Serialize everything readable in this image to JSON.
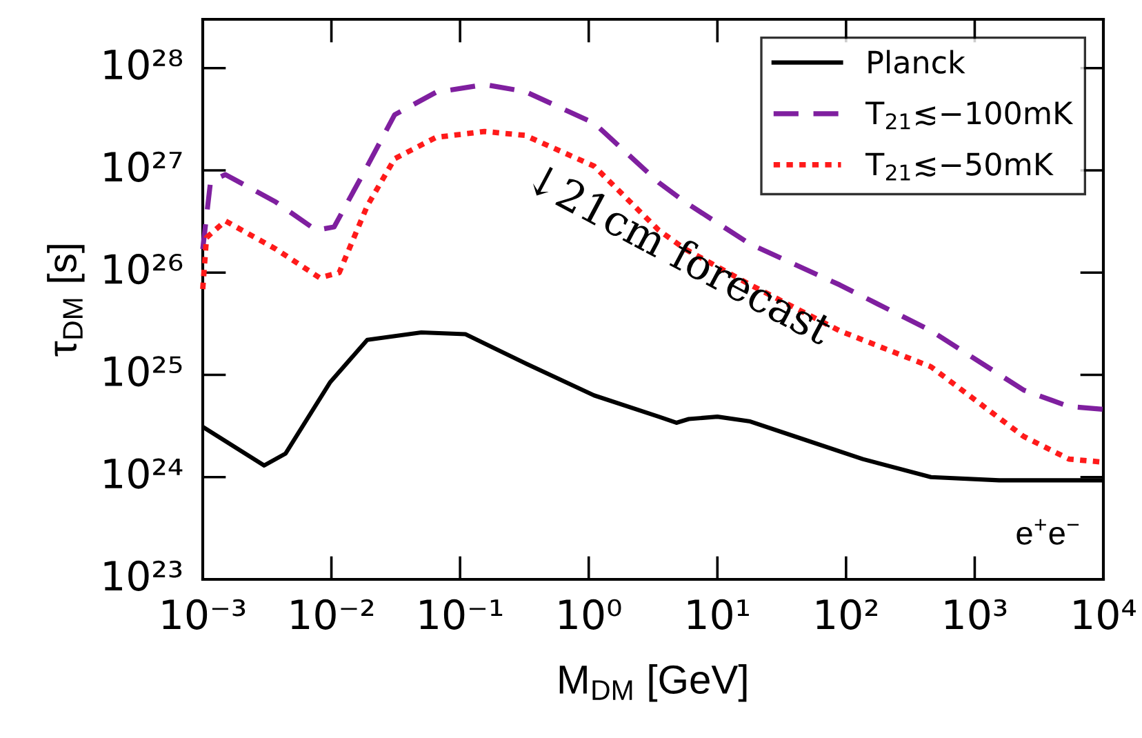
{
  "chart_data": {
    "type": "line",
    "xlabel": "M$_{DM}$ [GeV]",
    "ylabel": "τ$_{DM}$ [s]",
    "log": "xy",
    "grid": false,
    "legend": "top right",
    "xlim": [
      0.001,
      10000
    ],
    "xticks": [
      {
        "value": 0.001,
        "label": "10⁻³"
      },
      {
        "value": 0.01,
        "label": "10⁻²"
      },
      {
        "value": 0.1,
        "label": "10⁻¹"
      },
      {
        "value": 1,
        "label": "10⁰"
      },
      {
        "value": 10,
        "label": "10¹"
      },
      {
        "value": 100,
        "label": "10²"
      },
      {
        "value": 1000,
        "label": "10³"
      },
      {
        "value": 10000,
        "label": "10⁴"
      }
    ],
    "ylim": [
      1e+23,
      3e+28
    ],
    "yticks": [
      {
        "value": 1e+23,
        "label": "10²³"
      },
      {
        "value": 1e+24,
        "label": "10²⁴"
      },
      {
        "value": 1e+25,
        "label": "10²⁵"
      },
      {
        "value": 1e+26,
        "label": "10²⁶"
      },
      {
        "value": 1e+27,
        "label": "10²⁷"
      },
      {
        "value": 1e+28,
        "label": "10²⁸"
      }
    ],
    "annotations": [
      "↓21cm forecast",
      "e$^{+}$e$^{−}$"
    ],
    "series": [
      {
        "name": "Planck",
        "color": "#000000",
        "line_style": "solid",
        "x": [
          0.001,
          0.003,
          0.0044,
          0.0098,
          0.019,
          0.05,
          0.11,
          0.32,
          1.1,
          3.5,
          4.8,
          6.0,
          10,
          18,
          40,
          135,
          457,
          1550,
          10000
        ],
        "values": [
          3.1e+24,
          1.3e+24,
          1.7e+24,
          8.5e+24,
          2.2e+25,
          2.6e+25,
          2.5e+25,
          1.3e+25,
          6.3e+24,
          3.9e+24,
          3.4e+24,
          3.7e+24,
          3.9e+24,
          3.5e+24,
          2.5e+24,
          1.5e+24,
          1e+24,
          9.3e+23,
          9.3e+23
        ]
      },
      {
        "name": "T$_{21}$≲−100mK",
        "color": "#7f1f9f",
        "line_style": "dashed",
        "x": [
          0.001,
          0.00115,
          0.0015,
          0.0037,
          0.0076,
          0.0105,
          0.019,
          0.031,
          0.065,
          0.155,
          0.32,
          1.1,
          3.5,
          5.6,
          18,
          89,
          457,
          2400,
          5400,
          10000
        ],
        "values": [
          1.7e+26,
          7.8e+26,
          9.1e+26,
          4.9e+26,
          2.6e+26,
          2.8e+26,
          1.1e+27,
          3.5e+27,
          5.8e+27,
          6.9e+27,
          5.9e+27,
          2.9e+27,
          7.6e+26,
          4.9e+26,
          1.9e+26,
          7.6e+25,
          2.7e+25,
          7.1e+24,
          4.9e+24,
          4.6e+24
        ]
      },
      {
        "name": "T$_{21}$≲−50mK",
        "color": "#ff1a1a",
        "line_style": "dotted",
        "x": [
          0.001,
          0.00107,
          0.0015,
          0.0037,
          0.0081,
          0.0115,
          0.019,
          0.031,
          0.065,
          0.155,
          0.32,
          1.1,
          3.5,
          5.6,
          18,
          89,
          457,
          2400,
          5400,
          10000
        ],
        "values": [
          6.9e+25,
          2.2e+26,
          3.2e+26,
          1.7e+26,
          8.9e+25,
          1e+26,
          4.5e+26,
          1.3e+27,
          2.1e+27,
          2.4e+27,
          2.2e+27,
          1.1e+27,
          2.6e+26,
          1.7e+26,
          7.6e+25,
          2.7e+25,
          1.2e+25,
          2.5e+24,
          1.5e+24,
          1.4e+24
        ]
      }
    ]
  }
}
